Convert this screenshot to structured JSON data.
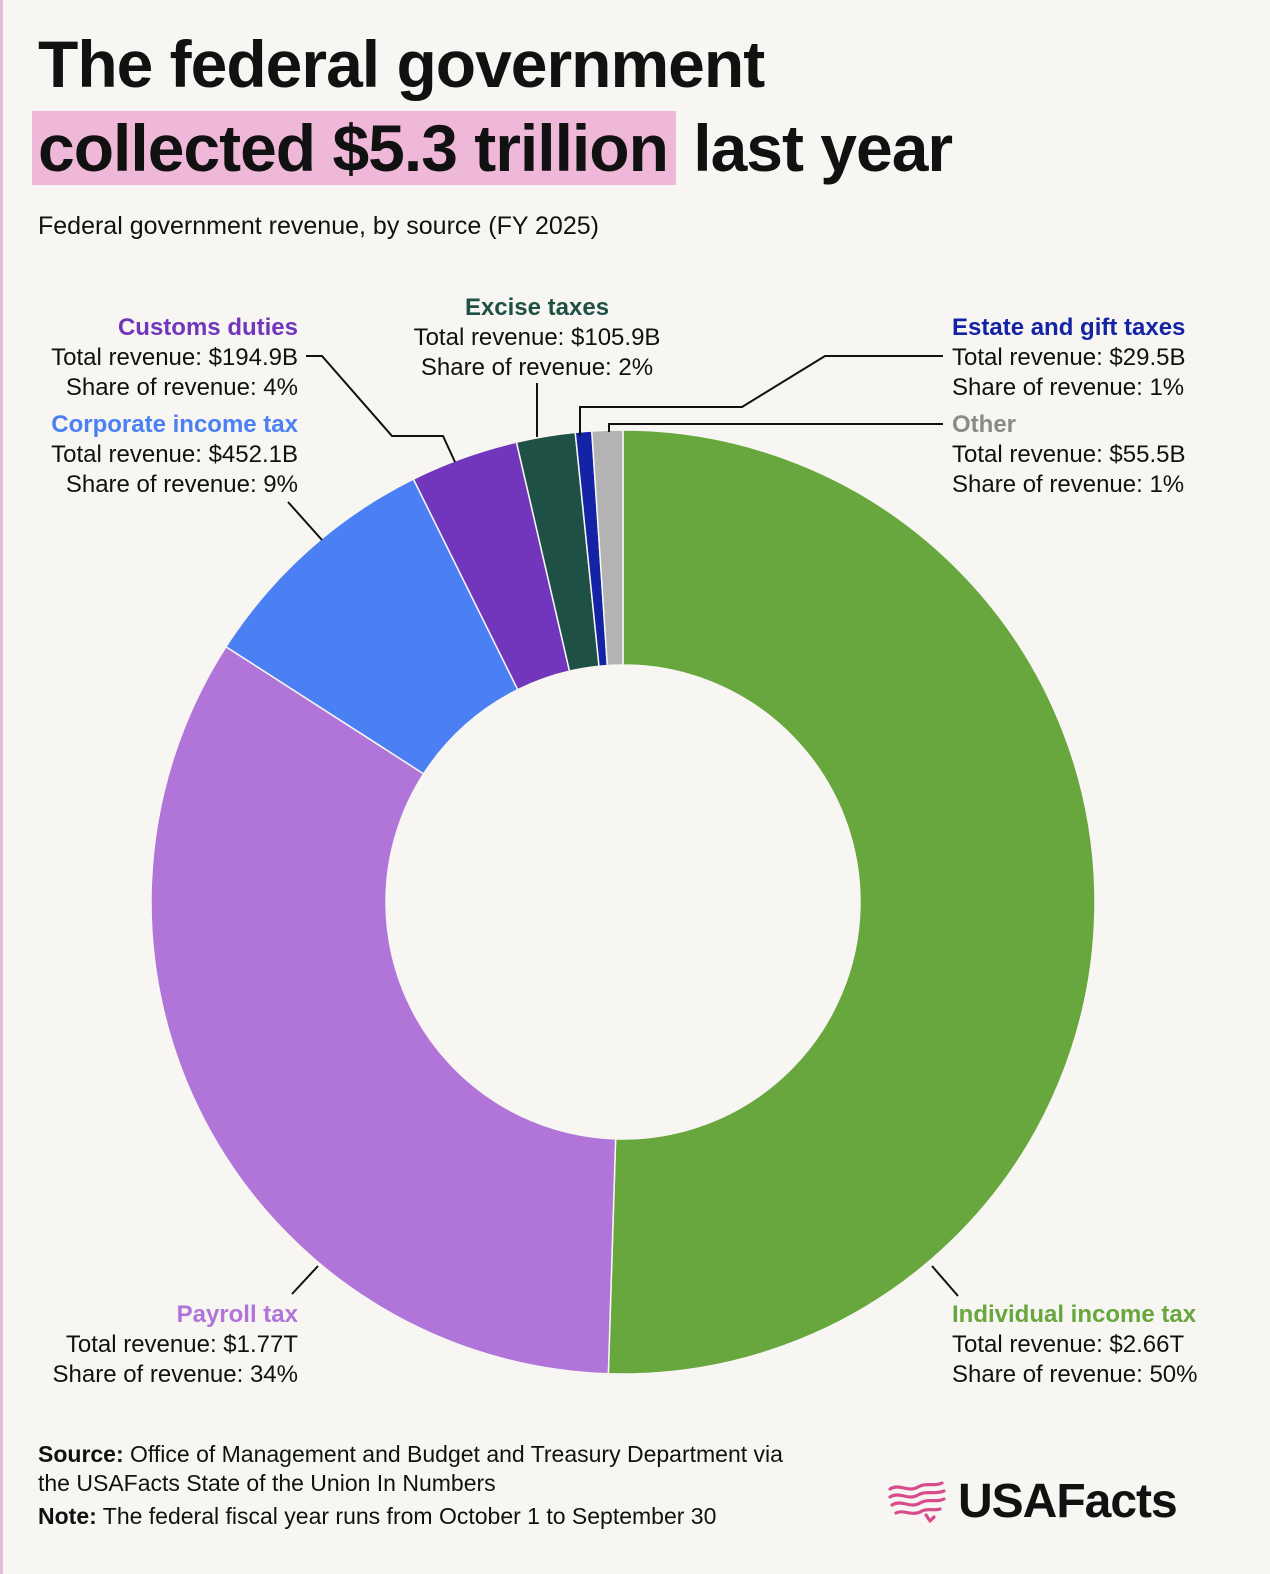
{
  "header": {
    "title_line1": "The federal government",
    "title_highlight": "collected $5.3 trillion",
    "title_rest": "last year",
    "subtitle": "Federal government revenue, by source (FY 2025)"
  },
  "chart_data": {
    "type": "pie",
    "title": "The federal government collected $5.3 trillion last year",
    "subtitle": "Federal government revenue, by source (FY 2025)",
    "categories": [
      "Individual income tax",
      "Payroll tax",
      "Corporate income tax",
      "Customs duties",
      "Excise taxes",
      "Estate and gift taxes",
      "Other"
    ],
    "values_billions": [
      2660,
      1770,
      452.1,
      194.9,
      105.9,
      29.5,
      55.5
    ],
    "colors": [
      "#68a63e",
      "#b174d8",
      "#4a80f3",
      "#7236bd",
      "#1f5046",
      "#1422a6",
      "#b3b3b3"
    ],
    "labels": [
      {
        "name": "Individual income tax",
        "revenue": "Total revenue: $2.66T",
        "share": "Share of revenue: 50%"
      },
      {
        "name": "Payroll tax",
        "revenue": "Total revenue: $1.77T",
        "share": "Share of revenue: 34%"
      },
      {
        "name": "Corporate income tax",
        "revenue": "Total revenue: $452.1B",
        "share": "Share of revenue: 9%"
      },
      {
        "name": "Customs duties",
        "revenue": "Total revenue: $194.9B",
        "share": "Share of revenue: 4%"
      },
      {
        "name": "Excise taxes",
        "revenue": "Total revenue: $105.9B",
        "share": "Share of revenue: 2%"
      },
      {
        "name": "Estate and gift taxes",
        "revenue": "Total revenue: $29.5B",
        "share": "Share of revenue: 1%"
      },
      {
        "name": "Other",
        "revenue": "Total revenue: $55.5B",
        "share": "Share of revenue: 1%"
      }
    ],
    "label_colors": [
      "#68a63e",
      "#b174d8",
      "#4a80f3",
      "#7236bd",
      "#1f5046",
      "#1422a6",
      "#8a8a8a"
    ]
  },
  "footer": {
    "source_label": "Source:",
    "source_text": "Office of Management and Budget and Treasury Department via the USAFacts State of the Union In Numbers",
    "note_label": "Note:",
    "note_text": "The federal fiscal year runs from October 1 to September 30"
  },
  "brand": {
    "name": "USAFacts",
    "logo_icon": "usafacts-flag-icon"
  }
}
